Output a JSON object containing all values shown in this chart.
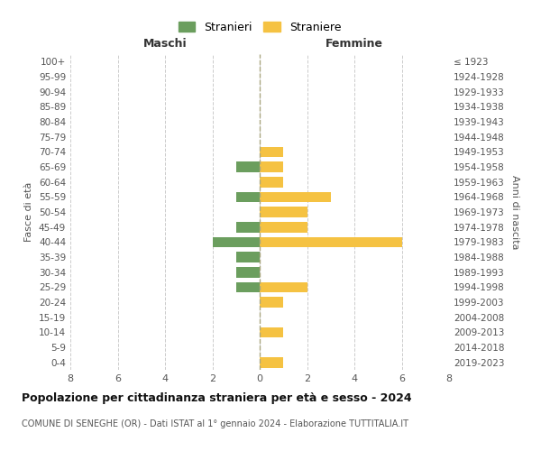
{
  "age_groups": [
    "0-4",
    "5-9",
    "10-14",
    "15-19",
    "20-24",
    "25-29",
    "30-34",
    "35-39",
    "40-44",
    "45-49",
    "50-54",
    "55-59",
    "60-64",
    "65-69",
    "70-74",
    "75-79",
    "80-84",
    "85-89",
    "90-94",
    "95-99",
    "100+"
  ],
  "birth_years": [
    "2019-2023",
    "2014-2018",
    "2009-2013",
    "2004-2008",
    "1999-2003",
    "1994-1998",
    "1989-1993",
    "1984-1988",
    "1979-1983",
    "1974-1978",
    "1969-1973",
    "1964-1968",
    "1959-1963",
    "1954-1958",
    "1949-1953",
    "1944-1948",
    "1939-1943",
    "1934-1938",
    "1929-1933",
    "1924-1928",
    "≤ 1923"
  ],
  "males": [
    0,
    0,
    0,
    0,
    0,
    1,
    1,
    1,
    2,
    1,
    0,
    1,
    0,
    1,
    0,
    0,
    0,
    0,
    0,
    0,
    0
  ],
  "females": [
    1,
    0,
    1,
    0,
    1,
    2,
    0,
    0,
    6,
    2,
    2,
    3,
    1,
    1,
    1,
    0,
    0,
    0,
    0,
    0,
    0
  ],
  "male_color": "#6b9e5e",
  "female_color": "#f5c242",
  "title": "Popolazione per cittadinanza straniera per età e sesso - 2024",
  "subtitle": "COMUNE DI SENEGHE (OR) - Dati ISTAT al 1° gennaio 2024 - Elaborazione TUTTITALIA.IT",
  "legend_male": "Stranieri",
  "legend_female": "Straniere",
  "xlabel_left": "Maschi",
  "xlabel_right": "Femmine",
  "ylabel_left": "Fasce di età",
  "ylabel_right": "Anni di nascita",
  "xlim": 8,
  "background_color": "#ffffff",
  "grid_color": "#cccccc",
  "bar_height": 0.7
}
